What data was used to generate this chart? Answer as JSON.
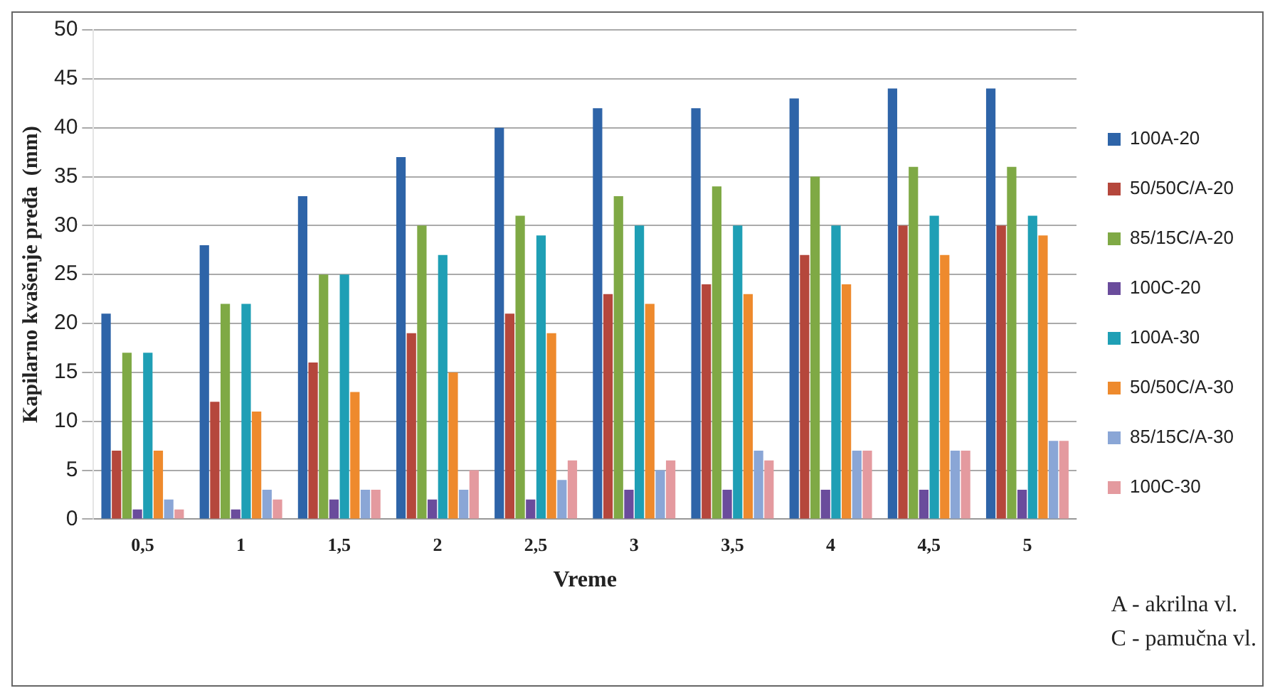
{
  "chart_data": {
    "type": "bar",
    "xlabel": "Vreme",
    "ylabel": "Kapilarno kvašenje pređa  (mm)",
    "categories": [
      "0,5",
      "1",
      "1,5",
      "2",
      "2,5",
      "3",
      "3,5",
      "4",
      "4,5",
      "5"
    ],
    "series": [
      {
        "name": "100A-20",
        "color": "#2e64a8",
        "values": [
          21,
          28,
          33,
          37,
          40,
          42,
          42,
          43,
          44,
          44
        ]
      },
      {
        "name": "50/50C/A-20",
        "color": "#b5473c",
        "values": [
          7,
          12,
          16,
          19,
          21,
          23,
          24,
          27,
          30,
          30
        ]
      },
      {
        "name": "85/15C/A-20",
        "color": "#7fa945",
        "values": [
          17,
          22,
          25,
          30,
          31,
          33,
          34,
          35,
          36,
          36
        ]
      },
      {
        "name": "100C-20",
        "color": "#6a4c9c",
        "values": [
          1,
          1,
          2,
          2,
          2,
          3,
          3,
          3,
          3,
          3
        ]
      },
      {
        "name": "100A-30",
        "color": "#1f9fb5",
        "values": [
          17,
          22,
          25,
          27,
          29,
          30,
          30,
          30,
          31,
          31
        ]
      },
      {
        "name": "50/50C/A-30",
        "color": "#ee8a2d",
        "values": [
          7,
          11,
          13,
          15,
          19,
          22,
          23,
          24,
          27,
          29
        ]
      },
      {
        "name": "85/15C/A-30",
        "color": "#8aa6d6",
        "values": [
          2,
          3,
          3,
          3,
          4,
          5,
          7,
          7,
          7,
          8
        ]
      },
      {
        "name": "100C-30",
        "color": "#e49a9f",
        "values": [
          1,
          2,
          3,
          5,
          6,
          6,
          6,
          7,
          7,
          8
        ]
      }
    ],
    "ylim": [
      0,
      50
    ],
    "yticks": [
      0,
      5,
      10,
      15,
      20,
      25,
      30,
      35,
      40,
      45,
      50
    ],
    "grid": "y",
    "legend": "right",
    "annotations": [
      "A - akrilna vl.",
      "C - pamučna vl."
    ]
  }
}
